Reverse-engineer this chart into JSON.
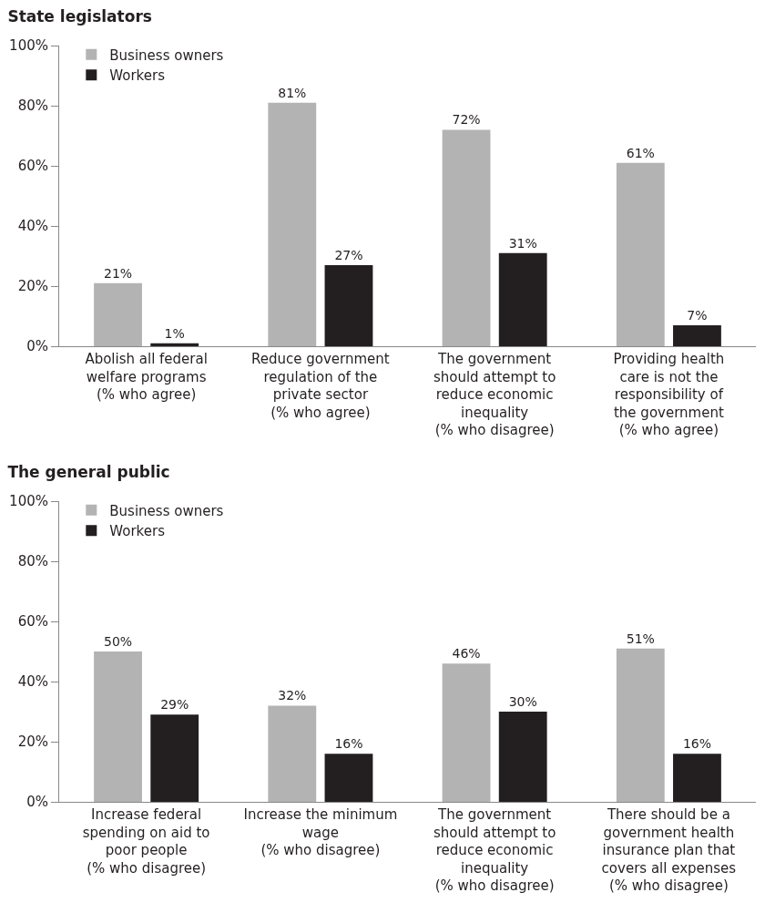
{
  "chart_data": [
    {
      "type": "bar",
      "title": "State legislators",
      "categories": [
        "Abolish all federal welfare programs (% who agree)",
        "Reduce government regulation of the private sector (% who agree)",
        "The government should attempt to reduce economic inequality (% who disagree)",
        "Providing health care is not the responsibility of the government (% who agree)"
      ],
      "series": [
        {
          "name": "Business owners",
          "color": "#b3b3b3",
          "values": [
            21,
            81,
            72,
            61
          ],
          "value_labels": [
            "21%",
            "81%",
            "72%",
            "61%"
          ]
        },
        {
          "name": "Workers",
          "color": "#231f20",
          "values": [
            1,
            27,
            31,
            7
          ],
          "value_labels": [
            "1%",
            "27%",
            "31%",
            "7%"
          ]
        }
      ],
      "ylim": [
        0,
        100
      ],
      "yticks": [
        {
          "value": 0,
          "label": "0%"
        },
        {
          "value": 20,
          "label": "20%"
        },
        {
          "value": 40,
          "label": "40%"
        },
        {
          "value": 60,
          "label": "60%"
        },
        {
          "value": 80,
          "label": "80%"
        },
        {
          "value": 100,
          "label": "100%"
        }
      ],
      "grid": false,
      "legend": "top left"
    },
    {
      "type": "bar",
      "title": "The general public",
      "categories": [
        "Increase federal spending on aid to poor people (% who disagree)",
        "Increase the minimum wage (% who disagree)",
        "The government should attempt to reduce economic inequality (% who disagree)",
        "There should be a government health insurance plan that covers all expenses (% who disagree)"
      ],
      "series": [
        {
          "name": "Business owners",
          "color": "#b3b3b3",
          "values": [
            50,
            32,
            46,
            51
          ],
          "value_labels": [
            "50%",
            "32%",
            "46%",
            "51%"
          ]
        },
        {
          "name": "Workers",
          "color": "#231f20",
          "values": [
            29,
            16,
            30,
            16
          ],
          "value_labels": [
            "29%",
            "16%",
            "30%",
            "16%"
          ]
        }
      ],
      "ylim": [
        0,
        100
      ],
      "yticks": [
        {
          "value": 0,
          "label": "0%"
        },
        {
          "value": 20,
          "label": "20%"
        },
        {
          "value": 40,
          "label": "40%"
        },
        {
          "value": 60,
          "label": "60%"
        },
        {
          "value": 80,
          "label": "80%"
        },
        {
          "value": 100,
          "label": "100%"
        }
      ],
      "grid": false,
      "legend": "top left"
    }
  ]
}
